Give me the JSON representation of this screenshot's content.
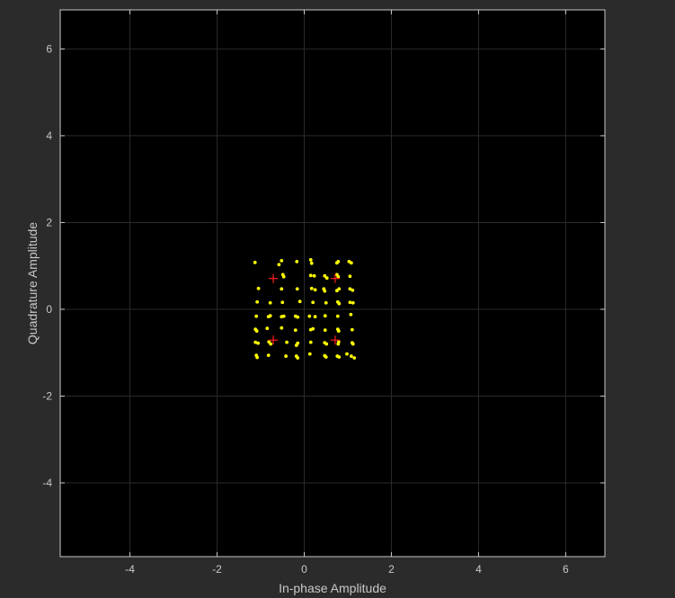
{
  "chart_data": {
    "type": "scatter",
    "xlabel": "In-phase Amplitude",
    "ylabel": "Quadrature Amplitude",
    "xlim": [
      -5.6,
      6.9
    ],
    "ylim": [
      -5.7,
      6.9
    ],
    "xticks": [
      -4,
      -2,
      0,
      2,
      4,
      6
    ],
    "yticks": [
      -4,
      -2,
      0,
      2,
      4,
      6
    ],
    "grid": true,
    "colors": {
      "background": "#2b2b2b",
      "plot_area": "#000000",
      "grid": "#2a2a2a",
      "axis": "#c8c8c8",
      "received": "#ffff00",
      "reference": "#ff2020"
    },
    "series": [
      {
        "marker": "dot",
        "color": "#ffff00",
        "points": [
          [
            -1.13,
            1.08
          ],
          [
            -0.52,
            1.12
          ],
          [
            -0.58,
            1.03
          ],
          [
            -0.17,
            1.1
          ],
          [
            0.15,
            1.14
          ],
          [
            0.17,
            1.06
          ],
          [
            0.75,
            1.07
          ],
          [
            0.78,
            1.1
          ],
          [
            1.03,
            1.1
          ],
          [
            1.08,
            1.07
          ],
          [
            -0.49,
            0.8
          ],
          [
            -0.47,
            0.75
          ],
          [
            0.15,
            0.78
          ],
          [
            0.23,
            0.77
          ],
          [
            0.47,
            0.77
          ],
          [
            0.52,
            0.72
          ],
          [
            0.75,
            0.8
          ],
          [
            0.78,
            0.75
          ],
          [
            1.05,
            0.76
          ],
          [
            -1.05,
            0.48
          ],
          [
            -0.52,
            0.47
          ],
          [
            -0.16,
            0.47
          ],
          [
            0.17,
            0.48
          ],
          [
            0.25,
            0.45
          ],
          [
            0.45,
            0.47
          ],
          [
            0.47,
            0.42
          ],
          [
            0.75,
            0.43
          ],
          [
            0.8,
            0.47
          ],
          [
            1.05,
            0.47
          ],
          [
            1.11,
            0.44
          ],
          [
            -1.08,
            0.17
          ],
          [
            -0.78,
            0.15
          ],
          [
            -0.5,
            0.16
          ],
          [
            -0.1,
            0.18
          ],
          [
            0.2,
            0.16
          ],
          [
            0.5,
            0.15
          ],
          [
            0.77,
            0.17
          ],
          [
            0.8,
            0.13
          ],
          [
            1.05,
            0.16
          ],
          [
            1.12,
            0.15
          ],
          [
            -1.1,
            -0.16
          ],
          [
            -0.82,
            -0.17
          ],
          [
            -0.78,
            -0.15
          ],
          [
            -0.52,
            -0.17
          ],
          [
            -0.47,
            -0.16
          ],
          [
            -0.2,
            -0.16
          ],
          [
            -0.15,
            -0.18
          ],
          [
            0.12,
            -0.16
          ],
          [
            0.25,
            -0.17
          ],
          [
            0.48,
            -0.15
          ],
          [
            0.77,
            -0.16
          ],
          [
            1.07,
            -0.12
          ],
          [
            -1.12,
            -0.46
          ],
          [
            -1.09,
            -0.5
          ],
          [
            -0.85,
            -0.44
          ],
          [
            -0.52,
            -0.43
          ],
          [
            -0.2,
            -0.48
          ],
          [
            0.15,
            -0.47
          ],
          [
            0.2,
            -0.45
          ],
          [
            0.48,
            -0.48
          ],
          [
            0.77,
            -0.46
          ],
          [
            0.79,
            -0.5
          ],
          [
            1.1,
            -0.47
          ],
          [
            -1.12,
            -0.76
          ],
          [
            -1.06,
            -0.78
          ],
          [
            -0.81,
            -0.75
          ],
          [
            -0.77,
            -0.8
          ],
          [
            -0.4,
            -0.76
          ],
          [
            -0.15,
            -0.78
          ],
          [
            -0.18,
            -0.83
          ],
          [
            0.15,
            -0.76
          ],
          [
            0.47,
            -0.77
          ],
          [
            0.51,
            -0.8
          ],
          [
            0.79,
            -0.75
          ],
          [
            0.78,
            -0.8
          ],
          [
            1.1,
            -0.77
          ],
          [
            1.12,
            -0.8
          ],
          [
            -1.1,
            -1.06
          ],
          [
            -1.08,
            -1.11
          ],
          [
            -0.82,
            -1.06
          ],
          [
            -0.42,
            -1.08
          ],
          [
            -0.18,
            -1.08
          ],
          [
            -0.15,
            -1.12
          ],
          [
            0.13,
            -1.03
          ],
          [
            0.47,
            -1.07
          ],
          [
            0.5,
            -1.1
          ],
          [
            0.76,
            -1.08
          ],
          [
            0.8,
            -1.1
          ],
          [
            0.98,
            -1.03
          ],
          [
            1.08,
            -1.08
          ],
          [
            1.15,
            -1.12
          ]
        ]
      },
      {
        "marker": "plus",
        "color": "#ff2020",
        "points": [
          [
            -0.71,
            0.71
          ],
          [
            0.71,
            0.71
          ],
          [
            -0.71,
            -0.71
          ],
          [
            0.71,
            -0.71
          ]
        ]
      }
    ]
  }
}
